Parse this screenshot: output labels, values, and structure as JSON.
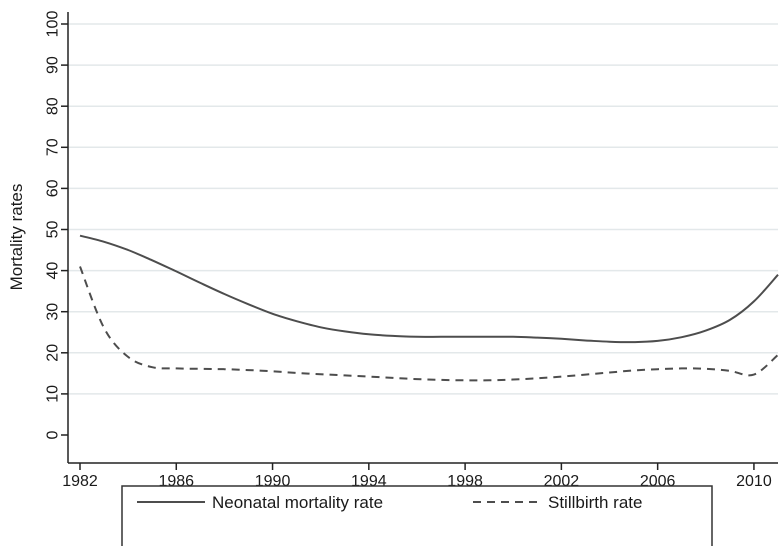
{
  "chart_data": {
    "type": "line",
    "title": "",
    "xlabel": "",
    "ylabel": "Mortality rates",
    "xlim": [
      1982,
      2011
    ],
    "ylim": [
      0,
      100
    ],
    "xticks": [
      1982,
      1986,
      1990,
      1994,
      1998,
      2002,
      2006,
      2010
    ],
    "yticks": [
      0,
      10,
      20,
      30,
      40,
      50,
      60,
      70,
      80,
      90,
      100
    ],
    "grid": "horizontal",
    "legend": "bottom",
    "series": [
      {
        "name": "Neonatal mortality rate",
        "style": "solid",
        "color": "#4d4d4d",
        "x": [
          1982,
          1983,
          1984,
          1985,
          1986,
          1987,
          1988,
          1989,
          1990,
          1991,
          1992,
          1993,
          1994,
          1995,
          1996,
          1997,
          1998,
          1999,
          2000,
          2001,
          2002,
          2003,
          2004,
          2005,
          2006,
          2007,
          2008,
          2009,
          2010,
          2011
        ],
        "y": [
          48.5,
          47,
          45,
          42.5,
          39.8,
          37,
          34.3,
          31.8,
          29.5,
          27.7,
          26.2,
          25.2,
          24.5,
          24.1,
          23.9,
          23.9,
          23.9,
          23.9,
          23.9,
          23.7,
          23.4,
          23,
          22.7,
          22.6,
          22.9,
          23.8,
          25.4,
          28,
          32.5,
          39
        ]
      },
      {
        "name": "Stillbirth rate",
        "style": "dashed",
        "color": "#4d4d4d",
        "x": [
          1982,
          1983,
          1984,
          1985,
          1986,
          1987,
          1988,
          1989,
          1990,
          1991,
          1992,
          1993,
          1994,
          1995,
          1996,
          1997,
          1998,
          1999,
          2000,
          2001,
          2002,
          2003,
          2004,
          2005,
          2006,
          2007,
          2008,
          2009,
          2010,
          2011
        ],
        "y": [
          41,
          26,
          19,
          16.5,
          16.2,
          16.1,
          16,
          15.8,
          15.5,
          15.1,
          14.8,
          14.5,
          14.2,
          13.9,
          13.6,
          13.4,
          13.3,
          13.3,
          13.5,
          13.8,
          14.2,
          14.7,
          15.2,
          15.7,
          16,
          16.2,
          16.1,
          15.6,
          14.7,
          19.5
        ]
      }
    ]
  }
}
